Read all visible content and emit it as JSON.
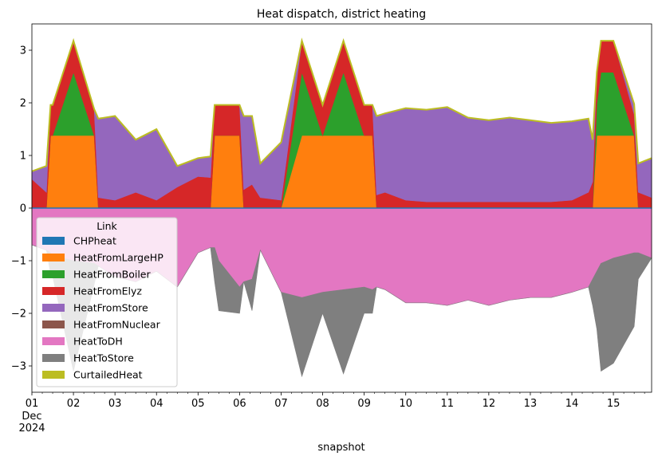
{
  "chart_data": {
    "type": "area",
    "title": "Heat dispatch, district heating",
    "xlabel": "snapshot",
    "ylabel": "",
    "ylim": [
      -3.5,
      3.5
    ],
    "xlim": [
      1,
      15.92
    ],
    "x_tick_values": [
      1,
      2,
      3,
      4,
      5,
      6,
      7,
      8,
      9,
      10,
      11,
      12,
      13,
      14,
      15
    ],
    "x_tick_labels": [
      "01",
      "02",
      "03",
      "04",
      "05",
      "06",
      "07",
      "08",
      "09",
      "10",
      "11",
      "12",
      "13",
      "14",
      "15"
    ],
    "x_sublabel": [
      "Dec",
      "2024"
    ],
    "y_ticks": [
      -3,
      -2,
      -1,
      0,
      1,
      2,
      3
    ],
    "y_tick_labels": [
      "−3",
      "−2",
      "−1",
      "0",
      "1",
      "2",
      "3"
    ],
    "grid": false,
    "legend": {
      "title": "Link",
      "placement": "lower-left",
      "entries": [
        "CHPheat",
        "HeatFromLargeHP",
        "HeatFromBoiler",
        "HeatFromElyz",
        "HeatFromStore",
        "HeatFromNuclear",
        "HeatToDH",
        "HeatToStore",
        "CurtailedHeat"
      ]
    },
    "x_unit": "day of December 2024",
    "x": [
      1.0,
      1.35,
      1.45,
      1.5,
      2.0,
      2.5,
      2.6,
      3.0,
      3.5,
      4.0,
      4.5,
      5.0,
      5.3,
      5.4,
      5.5,
      6.0,
      6.1,
      6.3,
      6.5,
      7.0,
      7.5,
      8.0,
      8.5,
      9.0,
      9.2,
      9.3,
      9.5,
      10.0,
      10.5,
      11.0,
      11.5,
      12.0,
      12.5,
      13.0,
      13.5,
      14.0,
      14.4,
      14.5,
      14.6,
      14.7,
      15.0,
      15.5,
      15.6,
      15.92
    ],
    "series": [
      {
        "name": "CHPheat",
        "color": "#1f77b4",
        "values": [
          0,
          0,
          0,
          0,
          0,
          0,
          0,
          0,
          0,
          0,
          0,
          0,
          0,
          0,
          0,
          0,
          0,
          0,
          0,
          0,
          0,
          0,
          0,
          0,
          0,
          0,
          0,
          0,
          0,
          0,
          0,
          0,
          0,
          0,
          0,
          0,
          0,
          0,
          0,
          0,
          0,
          0,
          0,
          0
        ]
      },
      {
        "name": "HeatFromLargeHP",
        "color": "#ff7f0e",
        "values": [
          0,
          0,
          1.38,
          1.38,
          1.38,
          1.38,
          0,
          0,
          0,
          0,
          0,
          0,
          0,
          1.38,
          1.38,
          1.38,
          0,
          0,
          0,
          0,
          1.38,
          1.38,
          1.38,
          1.38,
          1.38,
          0,
          0,
          0,
          0,
          0,
          0,
          0,
          0,
          0,
          0,
          0,
          0,
          0,
          1.38,
          1.38,
          1.38,
          1.38,
          0,
          0
        ]
      },
      {
        "name": "HeatFromBoiler",
        "color": "#2ca02c",
        "values": [
          0,
          0,
          0,
          0,
          1.2,
          0,
          0,
          0,
          0,
          0,
          0,
          0,
          0,
          0,
          0,
          0,
          0,
          0,
          0,
          0,
          1.2,
          0,
          1.2,
          0,
          0,
          0,
          0,
          0,
          0,
          0,
          0,
          0,
          0,
          0,
          0,
          0,
          0,
          0,
          0.6,
          1.2,
          1.2,
          0,
          0,
          0
        ]
      },
      {
        "name": "HeatFromElyz",
        "color": "#d62728",
        "values": [
          0.55,
          0.3,
          0.58,
          0.58,
          0.6,
          0.5,
          0.2,
          0.15,
          0.3,
          0.15,
          0.4,
          0.6,
          0.58,
          0.58,
          0.58,
          0.58,
          0.35,
          0.45,
          0.2,
          0.15,
          0.6,
          0.58,
          0.6,
          0.58,
          0.58,
          0.25,
          0.3,
          0.15,
          0.12,
          0.12,
          0.12,
          0.12,
          0.12,
          0.12,
          0.12,
          0.15,
          0.3,
          0.5,
          0.6,
          0.6,
          0.6,
          0.4,
          0.3,
          0.2
        ]
      },
      {
        "name": "HeatFromStore",
        "color": "#9467bd",
        "values": [
          0.15,
          0.5,
          0,
          0,
          0,
          0,
          1.5,
          1.6,
          1.0,
          1.35,
          0.4,
          0.35,
          0.4,
          0,
          0,
          0,
          1.4,
          1.3,
          0.65,
          1.1,
          0,
          0,
          0,
          0,
          0,
          1.5,
          1.5,
          1.75,
          1.75,
          1.8,
          1.6,
          1.55,
          1.6,
          1.55,
          1.5,
          1.5,
          1.4,
          0.8,
          0,
          0,
          0,
          0.2,
          0.55,
          0.75
        ]
      },
      {
        "name": "HeatFromNuclear",
        "color": "#8c564b",
        "values": [
          0,
          0,
          0,
          0,
          0,
          0,
          0,
          0,
          0,
          0,
          0,
          0,
          0,
          0,
          0,
          0,
          0,
          0,
          0,
          0,
          0,
          0,
          0,
          0,
          0,
          0,
          0,
          0,
          0,
          0,
          0,
          0,
          0,
          0,
          0,
          0,
          0,
          0,
          0,
          0,
          0,
          0,
          0,
          0
        ]
      },
      {
        "name": "HeatToDH",
        "color": "#e377c2",
        "values": [
          -0.7,
          -0.8,
          -0.85,
          -0.9,
          -1.0,
          -1.05,
          -1.1,
          -1.3,
          -1.4,
          -1.2,
          -1.5,
          -0.85,
          -0.75,
          -0.75,
          -1.0,
          -1.5,
          -1.4,
          -1.35,
          -0.8,
          -1.6,
          -1.7,
          -1.6,
          -1.55,
          -1.5,
          -1.55,
          -1.5,
          -1.55,
          -1.8,
          -1.8,
          -1.85,
          -1.75,
          -1.85,
          -1.75,
          -1.7,
          -1.7,
          -1.6,
          -1.5,
          -1.35,
          -1.2,
          -1.05,
          -0.95,
          -0.85,
          -0.85,
          -0.95
        ]
      },
      {
        "name": "HeatToStore",
        "color": "#7f7f7f",
        "values": [
          0,
          0,
          -0.4,
          -0.4,
          -2.1,
          -0.4,
          0,
          0,
          0,
          0,
          0,
          0,
          0,
          -0.65,
          -0.95,
          -0.5,
          0,
          -0.6,
          0,
          0,
          -1.5,
          -0.4,
          -1.6,
          -0.5,
          -0.45,
          0,
          0,
          0,
          0,
          0,
          0,
          0,
          0,
          0,
          0,
          0,
          0,
          -0.5,
          -1.1,
          -2.05,
          -2.0,
          -1.4,
          -0.5,
          0
        ]
      },
      {
        "name": "CurtailedHeat",
        "color": "#bcbd22",
        "values": [
          0,
          0,
          0,
          0,
          0,
          0,
          0,
          0,
          0,
          0,
          0,
          0,
          0,
          0,
          0,
          0,
          0,
          0,
          0,
          0,
          0,
          0,
          0,
          0,
          0,
          0,
          0,
          0,
          0,
          0,
          0,
          0,
          0,
          0,
          0,
          0,
          0,
          0,
          0,
          0,
          0,
          0,
          0,
          0
        ]
      }
    ]
  }
}
